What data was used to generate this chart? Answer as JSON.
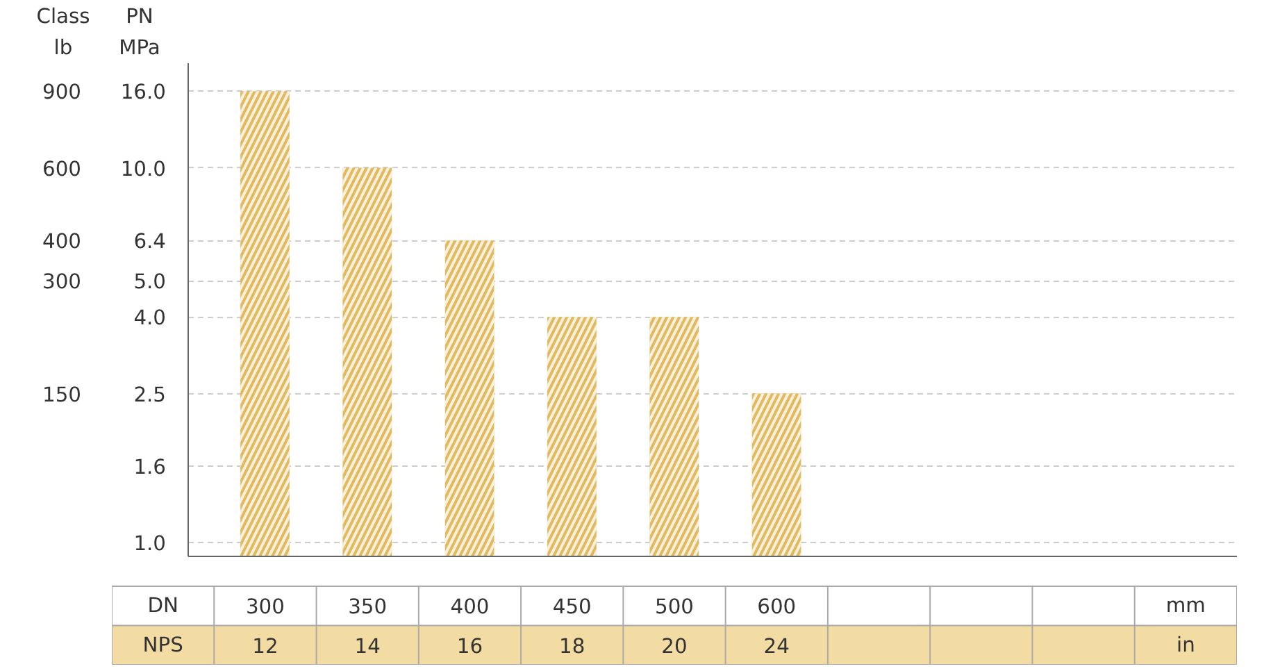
{
  "chart_data": {
    "type": "bar",
    "ylabel": "PN",
    "y2label": "Class",
    "categories": [
      "300",
      "350",
      "400",
      "450",
      "500",
      "600",
      null,
      null,
      null
    ],
    "values": [
      16,
      10,
      6.4,
      4,
      4,
      2.5,
      null,
      null,
      null
    ],
    "color": "#e2b95c",
    "log": true,
    "grid": "y",
    "ylim": [
      0.92,
      19
    ],
    "yticks": [
      {
        "value": 1,
        "label": "1.0"
      },
      {
        "value": 1.6,
        "label": "1.6"
      },
      {
        "value": 2.5,
        "label": "2.5"
      },
      {
        "value": 4,
        "label": "4.0"
      },
      {
        "value": 5,
        "label": "5.0"
      },
      {
        "value": 6.4,
        "label": "6.4"
      },
      {
        "value": 10,
        "label": "10.0"
      },
      {
        "value": 16,
        "label": "16.0"
      }
    ],
    "annotations": [
      "MPa",
      "lb",
      "DN",
      "mm",
      "NPS",
      "in",
      "12",
      "14",
      "16",
      "18",
      "20",
      "24",
      "900",
      "600",
      "400",
      "300",
      "150"
    ]
  }
}
